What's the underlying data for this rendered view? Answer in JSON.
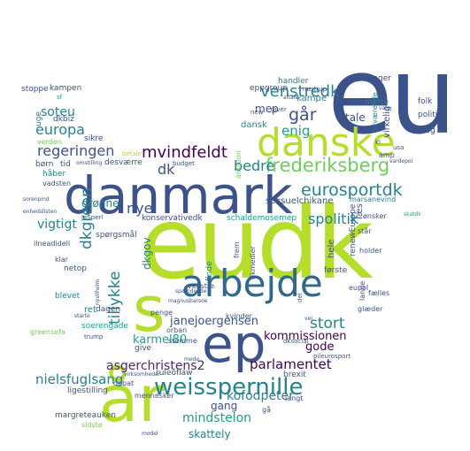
{
  "palette": {
    "navy": "#3b528b",
    "indigo": "#482878",
    "purple": "#440154",
    "blue": "#31688e",
    "teal": "#26828e",
    "sea": "#1f9e89",
    "green": "#35b779",
    "lime": "#6ece58",
    "yellowgreen": "#b5de2b",
    "yellow": "#fde725"
  },
  "words": [
    {
      "text": "eudk",
      "color": "yellowgreen",
      "rank": 1
    },
    {
      "text": "eu",
      "color": "navy",
      "rank": 1
    },
    {
      "text": "danmark",
      "color": "navy",
      "rank": 1
    },
    {
      "text": "år",
      "color": "yellowgreen",
      "rank": 1
    },
    {
      "text": "danske",
      "color": "yellowgreen",
      "rank": 2
    },
    {
      "text": "arbejde",
      "color": "blue",
      "rank": 2
    },
    {
      "text": "ep",
      "color": "navy",
      "rank": 2
    },
    {
      "text": "s",
      "color": "yellowgreen",
      "rank": 2
    },
    {
      "text": "weisspernille",
      "color": "teal",
      "rank": 2
    },
    {
      "text": "frederiksberg",
      "color": "lime",
      "rank": 3
    },
    {
      "text": "eurosportdk",
      "color": "teal",
      "rank": 3
    },
    {
      "text": "venstredk",
      "color": "teal",
      "rank": 3
    },
    {
      "text": "regeringen",
      "color": "navy",
      "rank": 3
    },
    {
      "text": "mvindfeldt",
      "color": "purple",
      "rank": 3
    },
    {
      "text": "dkgreen",
      "color": "teal",
      "rank": 3
    },
    {
      "text": "europa",
      "color": "teal",
      "rank": 3
    },
    {
      "text": "går",
      "color": "navy",
      "rank": 3
    },
    {
      "text": "enig",
      "color": "sea",
      "rank": 3
    },
    {
      "text": "bedre",
      "color": "teal",
      "rank": 3
    },
    {
      "text": "nye",
      "color": "navy",
      "rank": 3
    },
    {
      "text": "stort",
      "color": "teal",
      "rank": 3
    },
    {
      "text": "tillykke",
      "color": "teal",
      "rank": 3
    },
    {
      "text": "spolitik",
      "color": "teal",
      "rank": 3
    },
    {
      "text": "asgerchristens2",
      "color": "indigo",
      "rank": 3
    },
    {
      "text": "parlamentet",
      "color": "purple",
      "rank": 3
    },
    {
      "text": "nielsfuglsang",
      "color": "teal",
      "rank": 3
    },
    {
      "text": "kommissionen",
      "color": "purple",
      "rank": 3
    },
    {
      "text": "mindstelon",
      "color": "sea",
      "rank": 3
    },
    {
      "text": "kofodpeter",
      "color": "teal",
      "rank": 3
    },
    {
      "text": "vigtigt",
      "color": "teal",
      "rank": 3
    },
    {
      "text": "soteu",
      "color": "teal",
      "rank": 3
    },
    {
      "text": "dk",
      "color": "navy",
      "rank": 3
    },
    {
      "text": "gode",
      "color": "purple",
      "rank": 3
    },
    {
      "text": "karmel80",
      "color": "sea",
      "rank": 3
    },
    {
      "text": "janejoergensen",
      "color": "navy",
      "rank": 3
    },
    {
      "text": "gang",
      "color": "navy",
      "rank": 3
    },
    {
      "text": "skattely",
      "color": "teal",
      "rank": 3
    },
    {
      "text": "grønne",
      "color": "teal",
      "rank": 3
    },
    {
      "text": "mep",
      "color": "navy",
      "rank": 4
    },
    {
      "text": "dkgov",
      "color": "teal",
      "rank": 4
    },
    {
      "text": "seksuelchikane",
      "color": "navy",
      "rank": 4
    },
    {
      "text": "tale",
      "color": "navy",
      "rank": 4
    },
    {
      "text": "kampe",
      "color": "teal",
      "rank": 4
    },
    {
      "text": "dansk",
      "color": "teal",
      "rank": 4
    },
    {
      "text": "handler",
      "color": "teal",
      "rank": 4
    },
    {
      "text": "eppgroup",
      "color": "navy",
      "rank": 4
    },
    {
      "text": "mette",
      "color": "teal",
      "rank": 4
    },
    {
      "text": "tager",
      "color": "navy",
      "rank": 4
    },
    {
      "text": "folk",
      "color": "navy",
      "rank": 4
    },
    {
      "text": "politik",
      "color": "navy",
      "rank": 4
    },
    {
      "text": "brug",
      "color": "navy",
      "rank": 4
    },
    {
      "text": "virkelig",
      "color": "navy",
      "rank": 4
    },
    {
      "text": "stoppe",
      "color": "navy",
      "rank": 4
    },
    {
      "text": "kampen",
      "color": "navy",
      "rank": 4
    },
    {
      "text": "dkbiz",
      "color": "navy",
      "rank": 4
    },
    {
      "text": "uge",
      "color": "teal",
      "rank": 4
    },
    {
      "text": "sikre",
      "color": "navy",
      "rank": 4
    },
    {
      "text": "verden",
      "color": "lime",
      "rank": 4
    },
    {
      "text": "børn",
      "color": "navy",
      "rank": 4
    },
    {
      "text": "tid",
      "color": "navy",
      "rank": 4
    },
    {
      "text": "desværre",
      "color": "navy",
      "rank": 4
    },
    {
      "text": "håber",
      "color": "teal",
      "rank": 4
    },
    {
      "text": "vadsten",
      "color": "navy",
      "rank": 4
    },
    {
      "text": "konservativedk",
      "color": "navy",
      "rank": 4
    },
    {
      "text": "schaldemosemep",
      "color": "sea",
      "rank": 4
    },
    {
      "text": "spørgsmål",
      "color": "navy",
      "rank": 4
    },
    {
      "text": "lineadidell",
      "color": "navy",
      "rank": 4
    },
    {
      "text": "klar",
      "color": "navy",
      "rank": 4
    },
    {
      "text": "netop",
      "color": "navy",
      "rank": 4
    },
    {
      "text": "ret",
      "color": "teal",
      "rank": 4
    },
    {
      "text": "dagen",
      "color": "navy",
      "rank": 4
    },
    {
      "text": "soerengade",
      "color": "sea",
      "rank": 4
    },
    {
      "text": "trump",
      "color": "navy",
      "rank": 4
    },
    {
      "text": "greensefa",
      "color": "lime",
      "rank": 4
    },
    {
      "text": "blevet",
      "color": "teal",
      "rank": 4
    },
    {
      "text": "mennesker",
      "color": "navy",
      "rank": 4
    },
    {
      "text": "debat",
      "color": "navy",
      "rank": 4
    },
    {
      "text": "ligestilling",
      "color": "navy",
      "rank": 4
    },
    {
      "text": "margreteauken",
      "color": "navy",
      "rank": 4
    },
    {
      "text": "sidste",
      "color": "lime",
      "rank": 4
    },
    {
      "text": "ruleoflaw",
      "color": "navy",
      "rank": 4
    },
    {
      "text": "brexit",
      "color": "navy",
      "rank": 4
    },
    {
      "text": "orban",
      "color": "navy",
      "rank": 4
    },
    {
      "text": "give",
      "color": "navy",
      "rank": 4
    },
    {
      "text": "stemme",
      "color": "navy",
      "rank": 4
    },
    {
      "text": "kvinder",
      "color": "navy",
      "rank": 4
    },
    {
      "text": "penge",
      "color": "navy",
      "rank": 4
    },
    {
      "text": "første",
      "color": "navy",
      "rank": 4
    },
    {
      "text": "renewEurope",
      "color": "navy",
      "rank": 4
    },
    {
      "text": "holder",
      "color": "navy",
      "rank": 4
    },
    {
      "text": "eupol",
      "color": "navy",
      "rank": 4
    },
    {
      "text": "fælles",
      "color": "navy",
      "rank": 4
    },
    {
      "text": "glæder",
      "color": "navy",
      "rank": 4
    },
    {
      "text": "står",
      "color": "navy",
      "rank": 4
    },
    {
      "text": "læs",
      "color": "navy",
      "rank": 4
    },
    {
      "text": "hele",
      "color": "navy",
      "rank": 4
    },
    {
      "text": "ønsker",
      "color": "navy",
      "rank": 4
    },
    {
      "text": "amp",
      "color": "navy",
      "rank": 4
    },
    {
      "text": "amazon",
      "color": "lime",
      "rank": 4
    },
    {
      "text": "frem",
      "color": "navy",
      "rank": 4
    },
    {
      "text": "finde",
      "color": "teal",
      "rank": 4
    },
    {
      "text": "venstre",
      "color": "navy",
      "rank": 4
    },
    {
      "text": "dkmedier",
      "color": "navy",
      "rank": 4
    },
    {
      "text": "lande",
      "color": "navy",
      "rank": 4
    },
    {
      "text": "dksocial",
      "color": "navy",
      "rank": 4
    },
    {
      "text": "langt",
      "color": "navy",
      "rank": 4
    },
    {
      "text": "gå",
      "color": "navy",
      "rank": 4
    },
    {
      "text": "pileurosport",
      "color": "navy",
      "rank": 4
    },
    {
      "text": "marsanevind",
      "color": "teal",
      "rank": 4
    },
    {
      "text": "nuværende",
      "color": "teal",
      "rank": 4
    },
    {
      "text": "kl",
      "color": "navy",
      "rank": 4
    },
    {
      "text": "betale",
      "color": "yellowgreen",
      "rank": 5
    },
    {
      "text": "budget",
      "color": "navy",
      "rank": 5
    },
    {
      "text": "omstilling",
      "color": "navy",
      "rank": 5
    },
    {
      "text": "sorenpind",
      "color": "navy",
      "rank": 5
    },
    {
      "text": "enhedslisten",
      "color": "navy",
      "rank": 5
    },
    {
      "text": "magnusbarsoe",
      "color": "navy",
      "rank": 5
    },
    {
      "text": "spændende",
      "color": "navy",
      "rank": 5
    },
    {
      "text": "nyvilhelm",
      "color": "navy",
      "rank": 5
    },
    {
      "text": "starte",
      "color": "navy",
      "rank": 5
    },
    {
      "text": "virksomheder",
      "color": "navy",
      "rank": 5
    },
    {
      "text": "nustrup",
      "color": "navy",
      "rank": 5
    },
    {
      "text": "giver",
      "color": "navy",
      "rank": 5
    },
    {
      "text": "new",
      "color": "navy",
      "rank": 5
    },
    {
      "text": "aftale",
      "color": "navy",
      "rank": 5
    },
    {
      "text": "sf",
      "color": "sea",
      "rank": 5
    },
    {
      "text": "valg",
      "color": "navy",
      "rank": 5
    },
    {
      "text": "usa",
      "color": "navy",
      "rank": 5
    },
    {
      "text": "vardepol",
      "color": "navy",
      "rank": 5
    },
    {
      "text": "skatdk",
      "color": "sea",
      "rank": 5
    },
    {
      "text": "jeSperl",
      "color": "navy",
      "rank": 5
    },
    {
      "text": "vel",
      "color": "navy",
      "rank": 5
    },
    {
      "text": "del",
      "color": "navy",
      "rank": 5
    },
    {
      "text": "model",
      "color": "navy",
      "rank": 5
    },
    {
      "text": "mede",
      "color": "navy",
      "rank": 5
    }
  ]
}
